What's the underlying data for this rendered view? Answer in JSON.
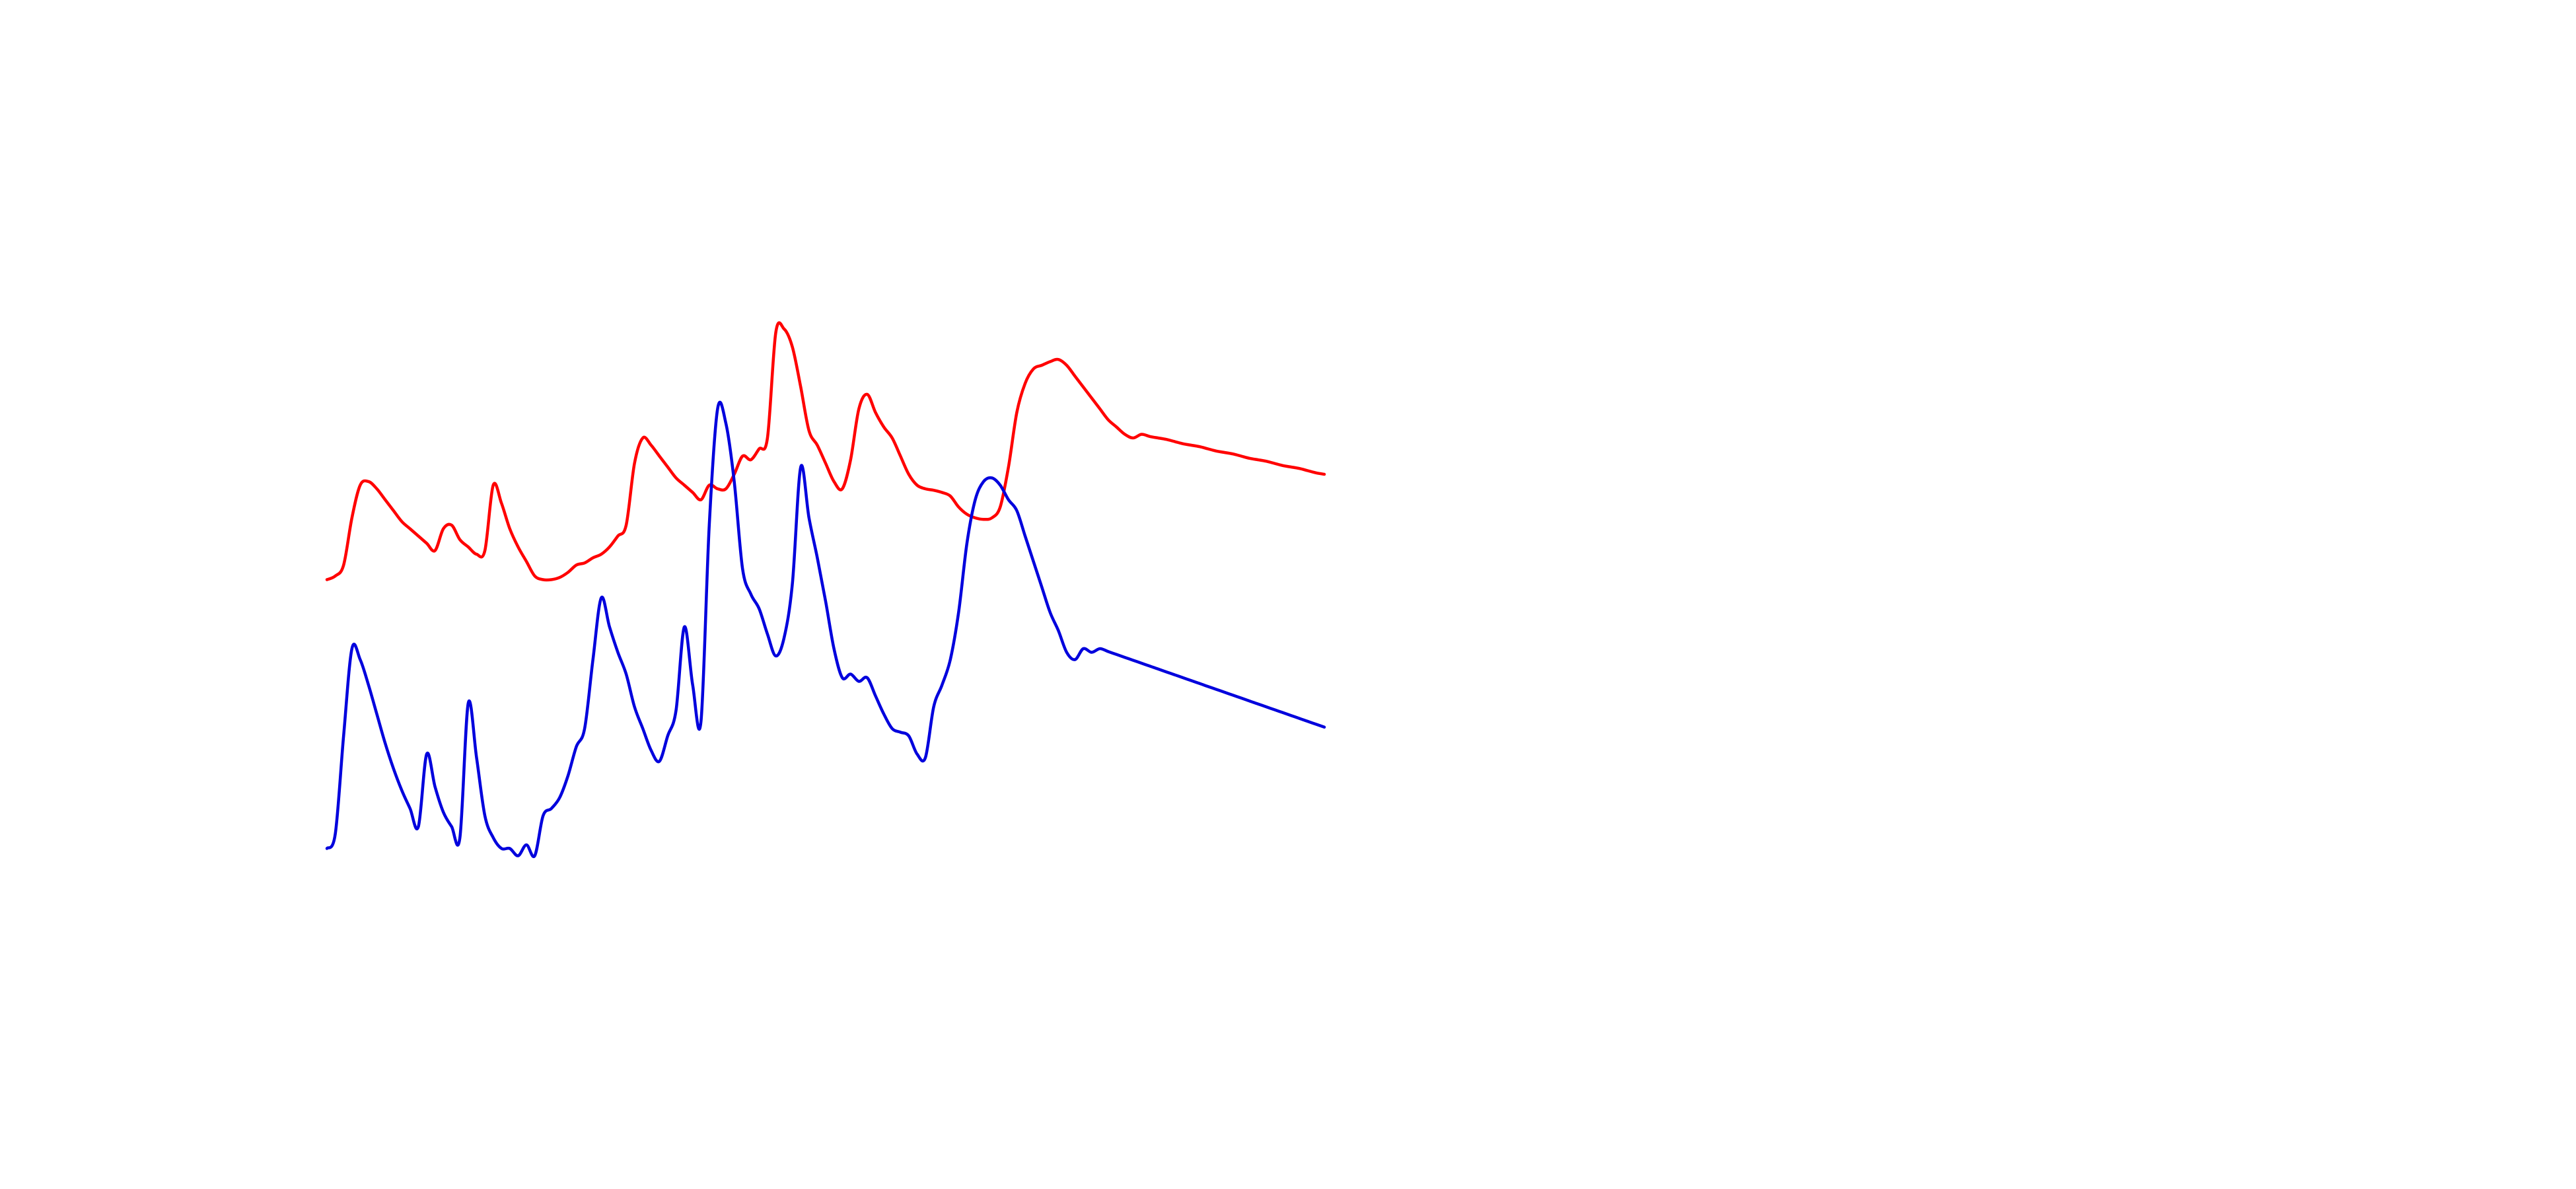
{
  "chart_data": {
    "type": "line",
    "title": "",
    "xlabel": "",
    "ylabel": "",
    "grid": false,
    "legend": "none",
    "xlim": [
      0,
      120
    ],
    "ylim": [
      0,
      100
    ],
    "series": [
      {
        "color": "#ff0000",
        "x": [
          0,
          1,
          2,
          3,
          4,
          5,
          6,
          7,
          8,
          9,
          10,
          11,
          12,
          13,
          14,
          15,
          16,
          17,
          18,
          19,
          20,
          21,
          22,
          23,
          24,
          25,
          26,
          27,
          28,
          29,
          30,
          31,
          32,
          33,
          34,
          35,
          36,
          37,
          38,
          39,
          40,
          41,
          42,
          43,
          44,
          45,
          46,
          47,
          48,
          49,
          50,
          51,
          52,
          53,
          54,
          55,
          56,
          57,
          58,
          59,
          60,
          61,
          62,
          63,
          64,
          65,
          66,
          67,
          68,
          69,
          70,
          71,
          72,
          73,
          74,
          75,
          76,
          77,
          78,
          79,
          80,
          81,
          82,
          83,
          84,
          85,
          86,
          87,
          88,
          89,
          90,
          91,
          92,
          93,
          94,
          95,
          96,
          97,
          98,
          99,
          100,
          101,
          102,
          103,
          104,
          105,
          106,
          107,
          108,
          109,
          110,
          111,
          112,
          113,
          114,
          115,
          116,
          117,
          118,
          119,
          120
        ],
        "values": [
          47.5,
          48.0,
          49.5,
          56.0,
          60.5,
          61.0,
          60.0,
          58.5,
          57.0,
          55.5,
          54.5,
          53.5,
          52.5,
          51.5,
          54.5,
          55.0,
          53.0,
          52.0,
          51.0,
          51.5,
          60.5,
          58.0,
          54.5,
          52.0,
          50.0,
          48.0,
          47.5,
          47.5,
          47.8,
          48.5,
          49.5,
          49.8,
          50.5,
          51.0,
          52.0,
          53.5,
          55.0,
          63.5,
          67.0,
          66.0,
          64.5,
          63.0,
          61.5,
          60.5,
          59.5,
          58.5,
          60.5,
          60.0,
          60.0,
          62.0,
          64.5,
          64.0,
          65.5,
          67.0,
          81.5,
          82.0,
          79.5,
          74.0,
          68.0,
          66.0,
          63.5,
          61.0,
          60.0,
          64.0,
          71.0,
          73.0,
          70.5,
          68.5,
          67.0,
          64.5,
          62.0,
          60.5,
          60.0,
          59.8,
          59.5,
          59.0,
          57.5,
          56.5,
          56.0,
          55.8,
          56.0,
          57.5,
          63.0,
          70.5,
          74.5,
          76.5,
          77.0,
          77.5,
          77.8,
          77.0,
          75.5,
          74.0,
          72.5,
          71.0,
          69.5,
          68.5,
          67.5,
          67.0,
          67.5,
          67.2,
          67.0,
          66.8,
          66.5,
          66.2,
          66.0,
          65.8,
          65.5,
          65.2,
          65.0,
          64.8,
          64.5,
          64.2,
          64.0,
          63.8,
          63.5,
          63.2,
          63.0,
          62.8,
          62.5,
          62.2,
          62.0
        ]
      },
      {
        "color": "#0000dd",
        "x": [
          0,
          1,
          2,
          3,
          4,
          5,
          6,
          7,
          8,
          9,
          10,
          11,
          12,
          13,
          14,
          15,
          16,
          17,
          18,
          19,
          20,
          21,
          22,
          23,
          24,
          25,
          26,
          27,
          28,
          29,
          30,
          31,
          32,
          33,
          34,
          35,
          36,
          37,
          38,
          39,
          40,
          41,
          42,
          43,
          44,
          45,
          46,
          47,
          48,
          49,
          50,
          51,
          52,
          53,
          54,
          55,
          56,
          57,
          58,
          59,
          60,
          61,
          62,
          63,
          64,
          65,
          66,
          67,
          68,
          69,
          70,
          71,
          72,
          73,
          74,
          75,
          76,
          77,
          78,
          79,
          80,
          81,
          82,
          83,
          84,
          85,
          86,
          87,
          88,
          89,
          90,
          91,
          92,
          93,
          94,
          95,
          96,
          97,
          98,
          99,
          100,
          101,
          102,
          103,
          104,
          105,
          106,
          107,
          108,
          109,
          110,
          111,
          112,
          113,
          114,
          115,
          116,
          117,
          118,
          119,
          120
        ],
        "values": [
          10.5,
          12.5,
          26.0,
          38.0,
          36.5,
          33.0,
          29.0,
          25.0,
          21.5,
          18.5,
          16.0,
          13.5,
          23.5,
          19.0,
          15.5,
          13.5,
          12.0,
          30.5,
          23.0,
          15.0,
          12.0,
          10.5,
          10.5,
          9.5,
          11.0,
          9.5,
          15.0,
          16.0,
          17.5,
          20.5,
          24.5,
          27.0,
          36.5,
          45.0,
          41.0,
          37.5,
          34.5,
          30.0,
          27.0,
          24.0,
          22.5,
          26.0,
          29.5,
          41.0,
          33.0,
          28.0,
          55.0,
          71.0,
          69.0,
          61.0,
          49.0,
          45.5,
          43.5,
          40.0,
          37.0,
          39.5,
          47.0,
          63.0,
          56.0,
          50.5,
          44.5,
          38.0,
          34.0,
          34.5,
          33.5,
          34.0,
          31.5,
          29.0,
          27.0,
          26.5,
          26.0,
          23.5,
          23.0,
          30.0,
          33.0,
          36.5,
          43.0,
          52.5,
          58.5,
          61.0,
          61.5,
          60.5,
          58.5,
          57.0,
          53.5,
          50.0,
          46.5,
          43.0,
          40.5,
          37.5,
          36.5,
          38.0,
          37.5,
          38.0,
          37.6,
          37.2,
          36.8,
          36.4,
          36.0,
          35.6,
          35.2,
          34.8,
          34.4,
          34.0,
          33.6,
          33.2,
          32.8,
          32.4,
          32.0,
          31.6,
          31.2,
          30.8,
          30.4,
          30.0,
          29.6,
          29.2,
          28.8,
          28.4,
          28.0,
          27.6,
          27.2
        ]
      }
    ]
  }
}
